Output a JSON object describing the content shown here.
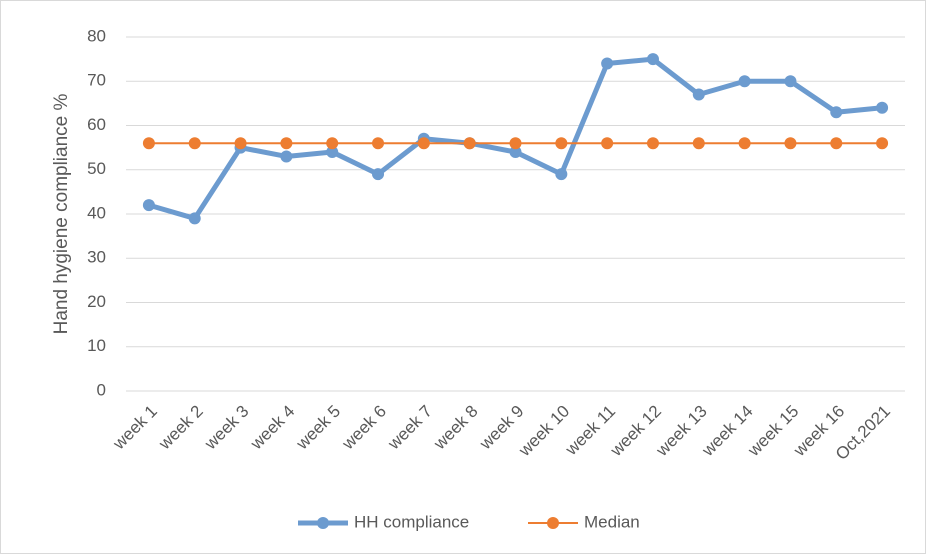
{
  "chart_data": {
    "type": "line",
    "y_label": "Hand hygiene compliance %",
    "categories": [
      "week 1",
      "week 2",
      "week 3",
      "week 4",
      "week 5",
      "week 6",
      "week 7",
      "week 8",
      "week 9",
      "week 10",
      "week 11",
      "week 12",
      "week 13",
      "week 14",
      "week 15",
      "week 16",
      "Oct,2021"
    ],
    "series": [
      {
        "name": "HH compliance",
        "color": "#6c9bcf",
        "values": [
          42,
          39,
          55,
          53,
          54,
          49,
          57,
          56,
          54,
          49,
          74,
          75,
          67,
          70,
          70,
          63,
          64
        ]
      },
      {
        "name": "Median",
        "color": "#ed7d31",
        "values": [
          56,
          56,
          56,
          56,
          56,
          56,
          56,
          56,
          56,
          56,
          56,
          56,
          56,
          56,
          56,
          56,
          56
        ]
      }
    ],
    "ylim": [
      0,
      80
    ],
    "yticks": [
      0,
      10,
      20,
      30,
      40,
      50,
      60,
      70,
      80
    ],
    "grid": true,
    "legend": "bottom"
  }
}
